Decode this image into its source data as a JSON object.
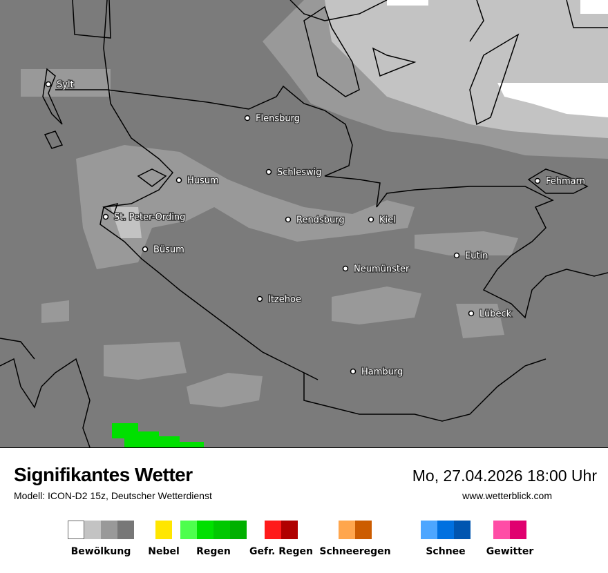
{
  "header": {
    "title": "Signifikantes Wetter",
    "model": "Modell: ICON-D2 15z, Deutscher Wetterdienst",
    "datetime": "Mo, 27.04.2026 18:00 Uhr",
    "website": "www.wetterblick.com"
  },
  "map": {
    "colors": {
      "background": "#7b7b7b",
      "cloud_medium": "#999999",
      "cloud_light": "#c3c3c3",
      "cloud_clear": "#ffffff",
      "rain": "#00e000",
      "coast": "#000000"
    },
    "cities": [
      {
        "name": "Sylt"
      },
      {
        "name": "Flensburg"
      },
      {
        "name": "Husum"
      },
      {
        "name": "Schleswig"
      },
      {
        "name": "Fehmarn"
      },
      {
        "name": "St. Peter-Ording"
      },
      {
        "name": "Rendsburg"
      },
      {
        "name": "Kiel"
      },
      {
        "name": "Büsum"
      },
      {
        "name": "Eutin"
      },
      {
        "name": "Neumünster"
      },
      {
        "name": "Itzehoe"
      },
      {
        "name": "Lübeck"
      },
      {
        "name": "Hamburg"
      }
    ]
  },
  "legend": [
    {
      "label": "Bewölkung",
      "colors": [
        "#ffffff",
        "#c3c3c3",
        "#999999",
        "#777777"
      ]
    },
    {
      "label": "Nebel",
      "colors": [
        "#ffe600"
      ]
    },
    {
      "label": "Regen",
      "colors": [
        "#4dff4d",
        "#00e000",
        "#00c800",
        "#00b000"
      ]
    },
    {
      "label": "Gefr. Regen",
      "colors": [
        "#ff1a1a",
        "#b00000"
      ]
    },
    {
      "label": "Schneeregen",
      "colors": [
        "#ffa64d",
        "#cc5c00"
      ]
    },
    {
      "label": "Schnee",
      "colors": [
        "#4da6ff",
        "#0070e0",
        "#0055b0"
      ]
    },
    {
      "label": "Gewitter",
      "colors": [
        "#ff4da6",
        "#e0006f"
      ]
    }
  ]
}
